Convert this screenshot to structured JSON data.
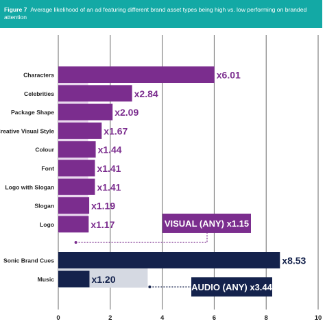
{
  "figure_label": "Figure 7",
  "figure_caption": "Average likelihood of an ad featuring different brand asset types being high vs. low performing on branded attention",
  "colors": {
    "banner": "#13a9a5",
    "visual_bar": "#7b2d8e",
    "visual_bar_light": "#e9d8ee",
    "audio_bar": "#14224c",
    "audio_bar_light": "#d5d9e2",
    "grid": "#6a6a6a"
  },
  "chart_data": {
    "type": "bar",
    "orientation": "horizontal",
    "title": "",
    "xlabel": "",
    "ylabel": "",
    "xlim": [
      0,
      10
    ],
    "xticks": [
      "0",
      "2",
      "4",
      "6",
      "8",
      "10"
    ],
    "grid": true,
    "series": [
      {
        "group": "visual",
        "categories": [
          "Characters",
          "Celebrities",
          "Package Shape",
          "Creative Visual Style",
          "Colour",
          "Font",
          "Logo with Slogan",
          "Slogan",
          "Logo"
        ],
        "values": [
          6.01,
          2.84,
          2.09,
          1.67,
          1.44,
          1.41,
          1.41,
          1.19,
          1.17
        ],
        "labels": [
          "x6.01",
          "x2.84",
          "x2.09",
          "x1.67",
          "x1.44",
          "x1.41",
          "x1.41",
          "x1.19",
          "x1.17"
        ]
      },
      {
        "group": "audio",
        "categories": [
          "Sonic Brand Cues",
          "Music"
        ],
        "values": [
          8.53,
          1.2
        ],
        "labels": [
          "x8.53",
          "x1.20"
        ]
      }
    ],
    "aggregates": [
      {
        "group": "visual",
        "label": "VISUAL (ANY) x1.15",
        "value": 1.15
      },
      {
        "group": "audio",
        "label": "AUDIO (ANY) x3.44",
        "value": 3.44
      }
    ]
  }
}
